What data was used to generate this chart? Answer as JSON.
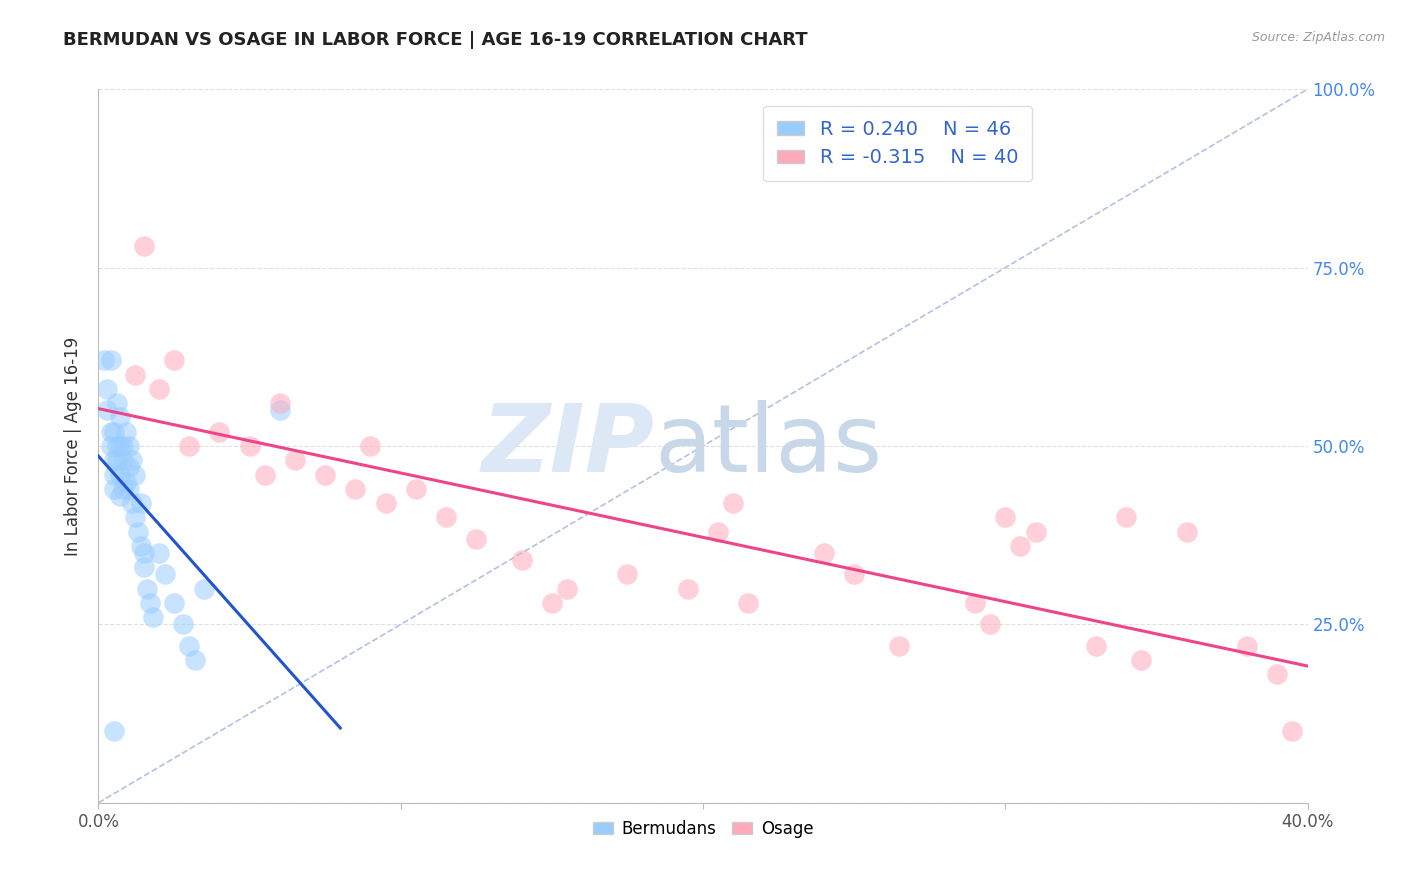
{
  "title": "BERMUDAN VS OSAGE IN LABOR FORCE | AGE 16-19 CORRELATION CHART",
  "source": "Source: ZipAtlas.com",
  "ylabel": "In Labor Force | Age 16-19",
  "xlim": [
    0.0,
    0.4
  ],
  "ylim": [
    0.0,
    1.0
  ],
  "x_ticks": [
    0.0,
    0.1,
    0.2,
    0.3,
    0.4
  ],
  "x_tick_labels": [
    "0.0%",
    "",
    "",
    "",
    "40.0%"
  ],
  "y_ticks": [
    0.0,
    0.25,
    0.5,
    0.75,
    1.0
  ],
  "right_y_tick_labels": [
    "",
    "25.0%",
    "50.0%",
    "75.0%",
    "100.0%"
  ],
  "bermudan_color": "#99ccff",
  "osage_color": "#ffaabb",
  "bermudan_line_color": "#2255cc",
  "osage_line_color": "#ee4488",
  "diagonal_color": "#aabbdd",
  "r_bermudan": 0.24,
  "n_bermudan": 46,
  "r_osage": -0.315,
  "n_osage": 40,
  "background_color": "#ffffff",
  "bermudan_x": [
    0.002,
    0.003,
    0.003,
    0.004,
    0.004,
    0.004,
    0.005,
    0.005,
    0.005,
    0.005,
    0.006,
    0.006,
    0.006,
    0.007,
    0.007,
    0.007,
    0.007,
    0.008,
    0.008,
    0.008,
    0.009,
    0.009,
    0.01,
    0.01,
    0.01,
    0.011,
    0.011,
    0.012,
    0.012,
    0.013,
    0.014,
    0.014,
    0.015,
    0.015,
    0.016,
    0.017,
    0.018,
    0.02,
    0.022,
    0.025,
    0.028,
    0.03,
    0.032,
    0.035,
    0.06,
    0.005
  ],
  "bermudan_y": [
    0.62,
    0.58,
    0.55,
    0.52,
    0.5,
    0.62,
    0.48,
    0.46,
    0.44,
    0.52,
    0.5,
    0.48,
    0.56,
    0.54,
    0.5,
    0.46,
    0.43,
    0.5,
    0.48,
    0.44,
    0.52,
    0.45,
    0.5,
    0.47,
    0.44,
    0.42,
    0.48,
    0.4,
    0.46,
    0.38,
    0.36,
    0.42,
    0.35,
    0.33,
    0.3,
    0.28,
    0.26,
    0.35,
    0.32,
    0.28,
    0.25,
    0.22,
    0.2,
    0.3,
    0.55,
    0.1
  ],
  "osage_x": [
    0.012,
    0.015,
    0.02,
    0.025,
    0.03,
    0.04,
    0.05,
    0.055,
    0.06,
    0.065,
    0.075,
    0.085,
    0.09,
    0.095,
    0.105,
    0.115,
    0.125,
    0.14,
    0.15,
    0.155,
    0.175,
    0.195,
    0.205,
    0.21,
    0.215,
    0.24,
    0.25,
    0.265,
    0.29,
    0.295,
    0.3,
    0.305,
    0.31,
    0.33,
    0.34,
    0.345,
    0.36,
    0.38,
    0.39,
    0.395
  ],
  "osage_y": [
    0.6,
    0.78,
    0.58,
    0.62,
    0.5,
    0.52,
    0.5,
    0.46,
    0.56,
    0.48,
    0.46,
    0.44,
    0.5,
    0.42,
    0.44,
    0.4,
    0.37,
    0.34,
    0.28,
    0.3,
    0.32,
    0.3,
    0.38,
    0.42,
    0.28,
    0.35,
    0.32,
    0.22,
    0.28,
    0.25,
    0.4,
    0.36,
    0.38,
    0.22,
    0.4,
    0.2,
    0.38,
    0.22,
    0.18,
    0.1
  ]
}
